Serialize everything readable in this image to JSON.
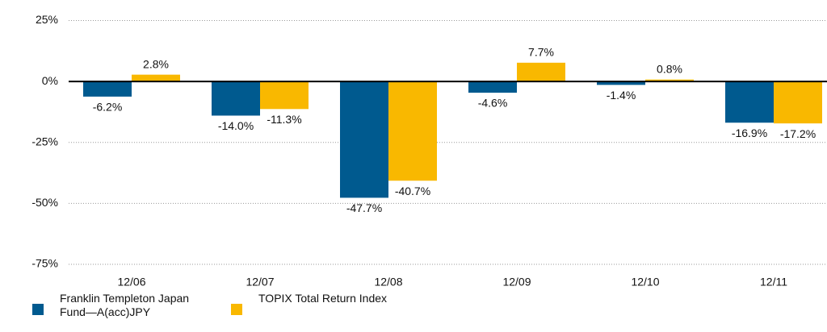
{
  "chart_data": {
    "type": "bar",
    "categories": [
      "12/06",
      "12/07",
      "12/08",
      "12/09",
      "12/10",
      "12/11"
    ],
    "series": [
      {
        "name": "Franklin Templeton Japan Fund—A(acc)JPY",
        "color": "#005a8f",
        "values": [
          -6.2,
          -14.0,
          -47.7,
          -4.6,
          -1.4,
          -16.9
        ],
        "value_labels": [
          "-6.2%",
          "-14.0%",
          "-47.7%",
          "-4.6%",
          "-1.4%",
          "-16.9%"
        ]
      },
      {
        "name": "TOPIX Total Return Index",
        "color": "#f9b800",
        "values": [
          2.8,
          -11.3,
          -40.7,
          7.7,
          0.8,
          -17.2
        ],
        "value_labels": [
          "2.8%",
          "-11.3%",
          "-40.7%",
          "7.7%",
          "0.8%",
          "-17.2%"
        ]
      }
    ],
    "ylim": [
      -75,
      25
    ],
    "yticks": [
      {
        "value": 25,
        "label": "25%"
      },
      {
        "value": 0,
        "label": "0%"
      },
      {
        "value": -25,
        "label": "-25%"
      },
      {
        "value": -50,
        "label": "-50%"
      },
      {
        "value": -75,
        "label": "-75%"
      }
    ],
    "grid": true
  }
}
